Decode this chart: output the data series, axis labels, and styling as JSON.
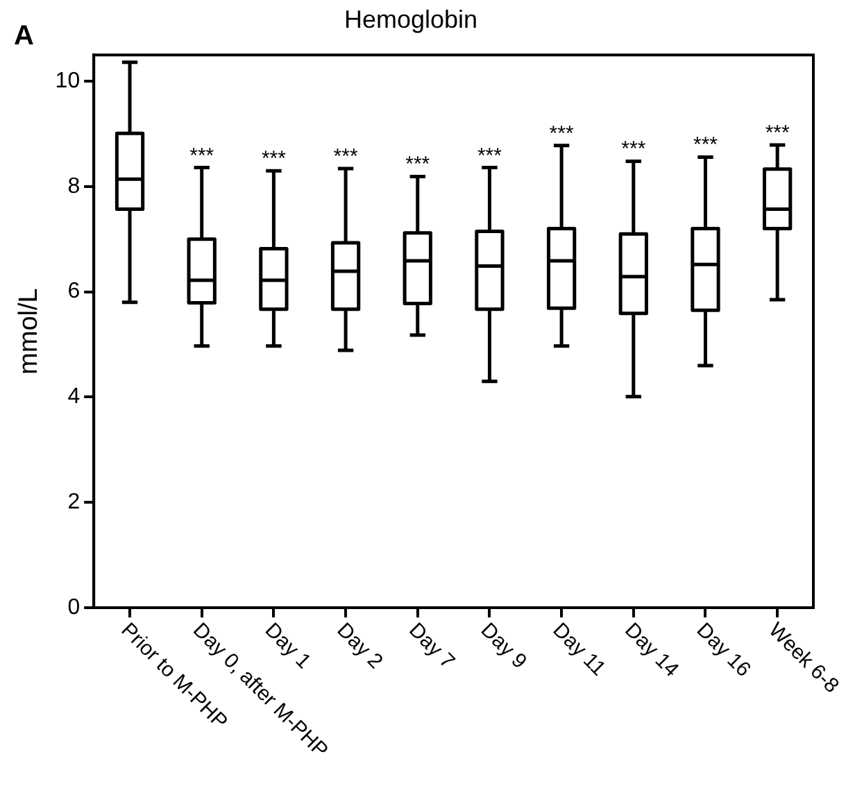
{
  "chart_data": {
    "type": "box",
    "title": "Hemoglobin",
    "ylabel": "mmol/L",
    "categories": [
      "Prior to M-PHP",
      "Day 0, after M-PHP",
      "Day 1",
      "Day 2",
      "Day 7",
      "Day 9",
      "Day 11",
      "Day 14",
      "Day 16",
      "Week 6-8"
    ],
    "boxes": [
      {
        "low": 5.8,
        "q1": 7.57,
        "median": 8.14,
        "q3": 9.01,
        "high": 10.36
      },
      {
        "low": 4.97,
        "q1": 5.79,
        "median": 6.22,
        "q3": 7.0,
        "high": 8.36
      },
      {
        "low": 4.97,
        "q1": 5.67,
        "median": 6.22,
        "q3": 6.82,
        "high": 8.3
      },
      {
        "low": 4.89,
        "q1": 5.67,
        "median": 6.39,
        "q3": 6.93,
        "high": 8.34
      },
      {
        "low": 5.18,
        "q1": 5.78,
        "median": 6.59,
        "q3": 7.12,
        "high": 8.19
      },
      {
        "low": 4.3,
        "q1": 5.67,
        "median": 6.49,
        "q3": 7.15,
        "high": 8.36
      },
      {
        "low": 4.97,
        "q1": 5.69,
        "median": 6.59,
        "q3": 7.2,
        "high": 8.78
      },
      {
        "low": 4.01,
        "q1": 5.59,
        "median": 6.29,
        "q3": 7.1,
        "high": 8.48
      },
      {
        "low": 4.6,
        "q1": 5.65,
        "median": 6.52,
        "q3": 7.2,
        "high": 8.56
      },
      {
        "low": 5.85,
        "q1": 7.2,
        "median": 7.57,
        "q3": 8.33,
        "high": 8.79
      }
    ],
    "color": "#000000",
    "ylim": [
      0,
      10.5
    ],
    "yticks": [
      0,
      2,
      4,
      6,
      8,
      10
    ],
    "grid": false,
    "annotations": [
      "A",
      {
        "text": "***",
        "x": "Day 0, after M-PHP",
        "y": 8.36
      },
      {
        "text": "***",
        "x": "Day 1",
        "y": 8.3
      },
      {
        "text": "***",
        "x": "Day 2",
        "y": 8.34
      },
      {
        "text": "***",
        "x": "Day 7",
        "y": 8.19
      },
      {
        "text": "***",
        "x": "Day 9",
        "y": 8.36
      },
      {
        "text": "***",
        "x": "Day 11",
        "y": 8.78
      },
      {
        "text": "***",
        "x": "Day 14",
        "y": 8.48
      },
      {
        "text": "***",
        "x": "Day 16",
        "y": 8.56
      },
      {
        "text": "***",
        "x": "Week 6-8",
        "y": 8.79
      }
    ]
  }
}
